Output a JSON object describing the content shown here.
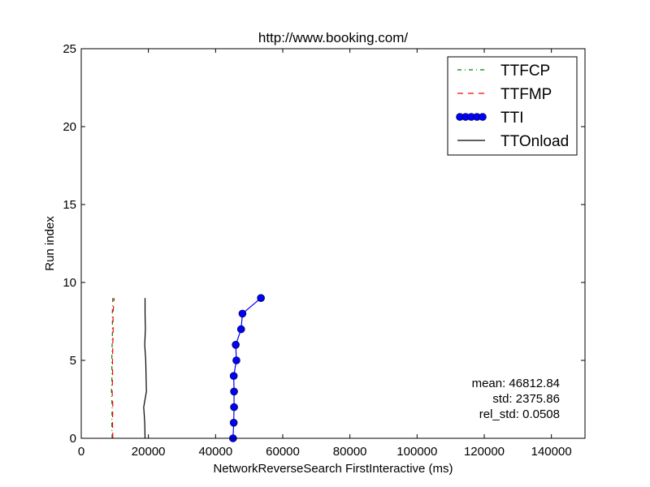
{
  "chart_data": {
    "type": "line",
    "title": "http://www.booking.com/",
    "xlabel": "NetworkReverseSearch FirstInteractive (ms)",
    "ylabel": "Run index",
    "xlim": [
      0,
      150000
    ],
    "ylim": [
      0,
      25
    ],
    "xticks": [
      0,
      20000,
      40000,
      60000,
      80000,
      100000,
      120000,
      140000
    ],
    "yticks": [
      0,
      5,
      10,
      15,
      20,
      25
    ],
    "xtick_labels": [
      "0",
      "20000",
      "40000",
      "60000",
      "80000",
      "100000",
      "120000",
      "140000"
    ],
    "ytick_labels": [
      "0",
      "5",
      "10",
      "15",
      "20",
      "25"
    ],
    "grid": false,
    "legend_position": "top-right",
    "series": [
      {
        "name": "TTFCP",
        "color": "#008000",
        "style": "dashdot",
        "x": [
          9200,
          9100,
          9200,
          9000,
          9150,
          9100,
          9200,
          9300,
          9250,
          9400
        ],
        "y": [
          0,
          1,
          2,
          3,
          4,
          5,
          6,
          7,
          8,
          9
        ]
      },
      {
        "name": "TTFMP",
        "color": "#ff0000",
        "style": "dashed",
        "x": [
          9400,
          9300,
          9400,
          9200,
          9350,
          9300,
          9400,
          9500,
          9450,
          9800
        ],
        "y": [
          0,
          1,
          2,
          3,
          4,
          5,
          6,
          7,
          8,
          9
        ]
      },
      {
        "name": "TTI",
        "color": "#0000ff",
        "style": "solid-marker",
        "x": [
          45200,
          45400,
          45500,
          45500,
          45400,
          46200,
          46000,
          47600,
          48000,
          53500
        ],
        "y": [
          0,
          1,
          2,
          3,
          4,
          5,
          6,
          7,
          8,
          9
        ]
      },
      {
        "name": "TTOnload",
        "color": "#000000",
        "style": "solid",
        "x": [
          19000,
          18900,
          18600,
          19400,
          19300,
          19200,
          18900,
          19100,
          19000,
          19000
        ],
        "y": [
          0,
          1,
          2,
          3,
          4,
          5,
          6,
          7,
          8,
          9
        ]
      }
    ],
    "stats": {
      "mean": "mean: 46812.84",
      "std": "std: 2375.86",
      "rel_std": "rel_std: 0.0508"
    }
  }
}
